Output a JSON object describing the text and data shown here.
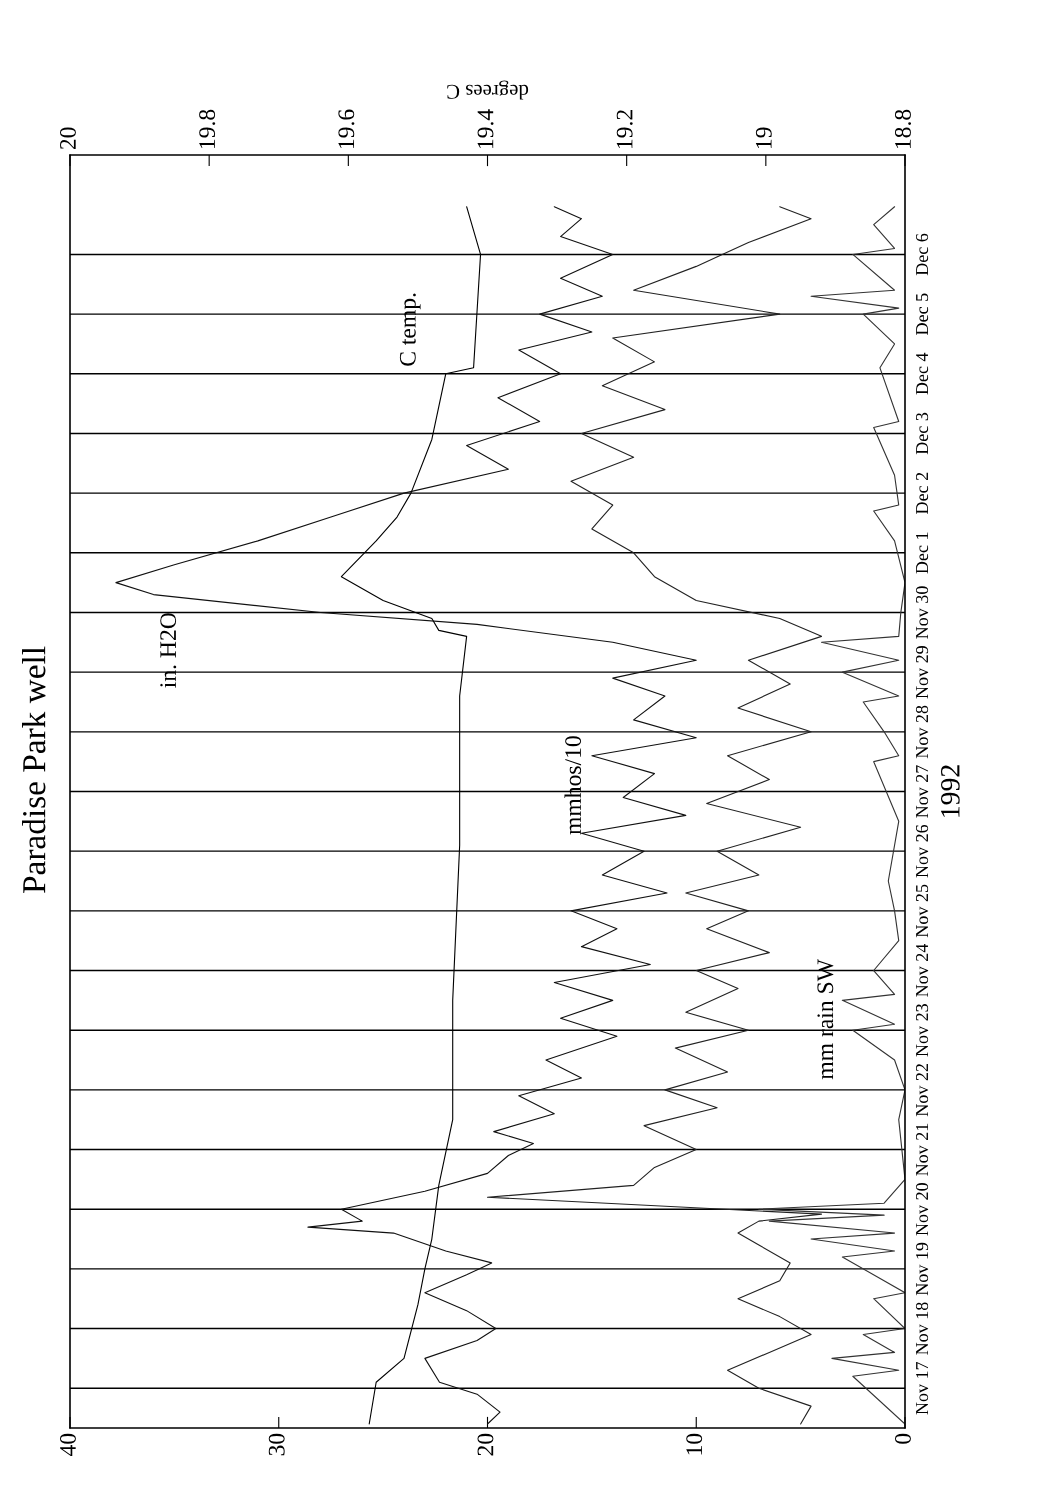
{
  "chart_data": {
    "type": "line",
    "orientation": "horizontal",
    "title": "Paradise Park well",
    "ylabel": "1992",
    "x2label": "degrees C",
    "xlim": [
      40,
      0
    ],
    "xticks": [
      40,
      30,
      20,
      10,
      0
    ],
    "x2lim": [
      20,
      18.8
    ],
    "x2ticks": [
      20,
      19.8,
      19.6,
      19.4,
      19.2,
      19,
      18.8
    ],
    "ylim": [
      "1992-11-16T08:00",
      "1992-12-07T16:00"
    ],
    "yticks": [
      {
        "value": "1992-11-17T00:00",
        "label": "Nov 17"
      },
      {
        "value": "1992-11-18T00:00",
        "label": "Nov 18"
      },
      {
        "value": "1992-11-19T00:00",
        "label": "Nov 19"
      },
      {
        "value": "1992-11-20T00:00",
        "label": "Nov 20"
      },
      {
        "value": "1992-11-21T00:00",
        "label": "Nov 21"
      },
      {
        "value": "1992-11-22T00:00",
        "label": "Nov 22"
      },
      {
        "value": "1992-11-23T00:00",
        "label": "Nov 23"
      },
      {
        "value": "1992-11-24T00:00",
        "label": "Nov 24"
      },
      {
        "value": "1992-11-25T00:00",
        "label": "Nov 25"
      },
      {
        "value": "1992-11-26T00:00",
        "label": "Nov 26"
      },
      {
        "value": "1992-11-27T00:00",
        "label": "Nov 27"
      },
      {
        "value": "1992-11-28T00:00",
        "label": "Nov 28"
      },
      {
        "value": "1992-11-29T00:00",
        "label": "Nov 29"
      },
      {
        "value": "1992-11-30T00:00",
        "label": "Nov 30"
      },
      {
        "value": "1992-12-01T00:00",
        "label": "Dec 1"
      },
      {
        "value": "1992-12-02T00:00",
        "label": "Dec 2"
      },
      {
        "value": "1992-12-03T00:00",
        "label": "Dec 3"
      },
      {
        "value": "1992-12-04T00:00",
        "label": "Dec 4"
      },
      {
        "value": "1992-12-05T00:00",
        "label": "Dec 5"
      },
      {
        "value": "1992-12-06T00:00",
        "label": "Dec 6"
      }
    ],
    "grid": "y",
    "marker": "none",
    "line_style": "solid",
    "series": [
      {
        "color": "#111111",
        "x": [
          "1992-11-16T09:36",
          "1992-11-16T14:24",
          "1992-11-16T21:36",
          "1992-11-17T02:24",
          "1992-11-17T12:00",
          "1992-11-17T19:12",
          "1992-11-18T00:00",
          "1992-11-18T07:12",
          "1992-11-18T14:24",
          "1992-11-18T21:36",
          "1992-11-19T02:24",
          "1992-11-19T07:12",
          "1992-11-19T14:24",
          "1992-11-19T16:48",
          "1992-11-19T19:12",
          "1992-11-20T00:00",
          "1992-11-20T07:12",
          "1992-11-20T14:24",
          "1992-11-20T21:36",
          "1992-11-21T02:24",
          "1992-11-21T07:12",
          "1992-11-21T14:24",
          "1992-11-21T21:36",
          "1992-11-22T04:48",
          "1992-11-22T12:00",
          "1992-11-22T21:36",
          "1992-11-23T04:48",
          "1992-11-23T12:00",
          "1992-11-23T19:12",
          "1992-11-24T02:24",
          "1992-11-24T09:36",
          "1992-11-24T16:48",
          "1992-11-25T00:00",
          "1992-11-25T07:12",
          "1992-11-25T14:24",
          "1992-11-26T00:00",
          "1992-11-26T07:12",
          "1992-11-26T14:24",
          "1992-11-26T21:36",
          "1992-11-27T07:12",
          "1992-11-27T14:24",
          "1992-11-27T21:36",
          "1992-11-28T04:48",
          "1992-11-28T14:24",
          "1992-11-28T21:36",
          "1992-11-29T04:48",
          "1992-11-29T12:00",
          "1992-11-29T19:12",
          "1992-11-30T00:00",
          "1992-11-30T07:12",
          "1992-11-30T12:00",
          "1992-11-30T19:12",
          "1992-12-01T04:48",
          "1992-12-01T14:24",
          "1992-12-02T00:00",
          "1992-12-02T09:36",
          "1992-12-02T19:12",
          "1992-12-03T04:48",
          "1992-12-03T14:24",
          "1992-12-04T00:00",
          "1992-12-04T09:36",
          "1992-12-04T16:48",
          "1992-12-05T00:00",
          "1992-12-05T07:12",
          "1992-12-05T14:24",
          "1992-12-06T00:00",
          "1992-12-06T07:12",
          "1992-12-06T14:24",
          "1992-12-06T19:12"
        ],
        "values": [
          20.0,
          19.4,
          20.5,
          22.3,
          23.0,
          20.5,
          19.6,
          21.0,
          23.0,
          21.0,
          19.8,
          22.0,
          24.5,
          28.6,
          26.0,
          27.0,
          23.0,
          20.0,
          19.0,
          17.8,
          19.7,
          16.8,
          18.5,
          15.5,
          17.2,
          13.8,
          16.5,
          14.0,
          16.8,
          12.2,
          15.5,
          13.8,
          16.0,
          11.4,
          14.5,
          12.5,
          15.5,
          10.5,
          13.5,
          12.0,
          15.0,
          10.0,
          13.0,
          11.5,
          14.0,
          10.0,
          14.0,
          20.5,
          28.0,
          36.0,
          37.8,
          35.0,
          31.0,
          27.5,
          24.0,
          19.0,
          21.0,
          17.5,
          19.5,
          16.5,
          18.5,
          15.0,
          17.5,
          14.5,
          16.5,
          14.0,
          16.5,
          15.5,
          16.8
        ]
      },
      {
        "color": "#222222",
        "x": [
          "1992-11-16T09:36",
          "1992-11-16T16:48",
          "1992-11-17T00:00",
          "1992-11-17T07:12",
          "1992-11-17T14:24",
          "1992-11-17T21:36",
          "1992-11-18T04:48",
          "1992-11-18T12:00",
          "1992-11-18T19:12",
          "1992-11-19T02:24",
          "1992-11-19T09:36",
          "1992-11-19T14:24",
          "1992-11-19T19:12",
          "1992-11-19T22:00",
          "1992-11-20T04:48",
          "1992-11-20T09:36",
          "1992-11-20T16:48",
          "1992-11-21T00:00",
          "1992-11-21T09:36",
          "1992-11-21T16:48",
          "1992-11-22T00:00",
          "1992-11-22T07:12",
          "1992-11-22T16:48",
          "1992-11-23T00:00",
          "1992-11-23T07:12",
          "1992-11-23T16:48",
          "1992-11-24T00:00",
          "1992-11-24T07:12",
          "1992-11-24T16:48",
          "1992-11-25T00:00",
          "1992-11-25T07:12",
          "1992-11-25T14:24",
          "1992-11-26T00:00",
          "1992-11-26T09:36",
          "1992-11-26T19:12",
          "1992-11-27T04:48",
          "1992-11-27T14:24",
          "1992-11-28T00:00",
          "1992-11-28T09:36",
          "1992-11-28T19:12",
          "1992-11-29T04:48",
          "1992-11-29T14:24",
          "1992-11-29T21:36",
          "1992-11-30T04:48",
          "1992-11-30T14:24",
          "1992-12-01T00:00",
          "1992-12-01T09:36",
          "1992-12-01T19:12",
          "1992-12-02T04:48",
          "1992-12-02T14:24",
          "1992-12-03T00:00",
          "1992-12-03T09:36",
          "1992-12-03T19:12",
          "1992-12-04T04:48",
          "1992-12-04T14:24",
          "1992-12-05T00:00",
          "1992-12-05T09:36",
          "1992-12-05T19:12",
          "1992-12-06T04:48",
          "1992-12-06T14:24",
          "1992-12-06T19:12"
        ],
        "values": [
          5.0,
          4.5,
          7.0,
          8.5,
          6.5,
          4.5,
          6.0,
          8.0,
          6.0,
          5.5,
          7.0,
          8.0,
          7.0,
          4.0,
          20.0,
          13.0,
          12.0,
          10.0,
          12.5,
          9.0,
          11.5,
          8.5,
          11.0,
          7.5,
          10.5,
          8.0,
          10.0,
          6.5,
          9.5,
          7.5,
          10.5,
          7.0,
          9.0,
          5.0,
          9.5,
          6.5,
          8.5,
          4.5,
          8.0,
          5.5,
          7.5,
          4.0,
          6.0,
          10.0,
          12.0,
          13.0,
          15.0,
          14.0,
          16.0,
          13.0,
          15.5,
          11.5,
          14.5,
          12.0,
          14.0,
          6.0,
          13.0,
          10.0,
          7.5,
          4.5,
          6.0
        ]
      },
      {
        "color": "#333333",
        "x": [
          "1992-11-16T09:36",
          "1992-11-17T04:48",
          "1992-11-17T07:12",
          "1992-11-17T12:00",
          "1992-11-17T14:24",
          "1992-11-17T21:36",
          "1992-11-18T00:00",
          "1992-11-18T12:00",
          "1992-11-18T14:24",
          "1992-11-19T04:48",
          "1992-11-19T07:12",
          "1992-11-19T12:00",
          "1992-11-19T14:24",
          "1992-11-19T19:12",
          "1992-11-19T21:36",
          "1992-11-20T00:00",
          "1992-11-20T02:24",
          "1992-11-20T12:00",
          "1992-11-21T12:00",
          "1992-11-22T00:00",
          "1992-11-22T12:00",
          "1992-11-23T00:00",
          "1992-11-23T02:24",
          "1992-11-23T12:00",
          "1992-11-23T14:24",
          "1992-11-24T00:00",
          "1992-11-24T12:00",
          "1992-11-25T00:00",
          "1992-11-25T12:00",
          "1992-11-26T12:00",
          "1992-11-27T12:00",
          "1992-11-27T14:24",
          "1992-11-28T00:00",
          "1992-11-28T12:00",
          "1992-11-28T14:24",
          "1992-11-29T00:00",
          "1992-11-29T04:48",
          "1992-11-29T12:00",
          "1992-11-29T14:24",
          "1992-11-30T00:00",
          "1992-11-30T12:00",
          "1992-12-01T04:48",
          "1992-12-01T16:48",
          "1992-12-01T19:12",
          "1992-12-02T07:12",
          "1992-12-03T02:24",
          "1992-12-03T04:48",
          "1992-12-04T02:24",
          "1992-12-04T12:00",
          "1992-12-05T00:00",
          "1992-12-05T02:24",
          "1992-12-05T07:12",
          "1992-12-05T09:36",
          "1992-12-06T00:00",
          "1992-12-06T02:24",
          "1992-12-06T12:00",
          "1992-12-06T19:12"
        ],
        "values": [
          0,
          2.5,
          0.3,
          3.5,
          0.5,
          2,
          0,
          1.5,
          0,
          3,
          0.5,
          4.5,
          0.5,
          6.5,
          1,
          7,
          1,
          0,
          0.3,
          0,
          0.5,
          2.5,
          0.5,
          3,
          0.5,
          1.5,
          0.3,
          0.5,
          0.8,
          0.3,
          1.5,
          0.3,
          1,
          2,
          0.3,
          3,
          0.3,
          4,
          0.3,
          0.2,
          0,
          0.5,
          1.5,
          0.3,
          0.5,
          1.5,
          0.3,
          1.2,
          0.5,
          2,
          0.3,
          4.5,
          0.5,
          2.5,
          0.5,
          1.5,
          0.5
        ]
      },
      {
        "color": "#000000",
        "axis": "x2",
        "x": [
          "1992-11-16T09:36",
          "1992-11-17T02:24",
          "1992-11-17T12:00",
          "1992-11-18T09:36",
          "1992-11-19T00:00",
          "1992-11-19T12:00",
          "1992-11-20T09:36",
          "1992-11-21T12:00",
          "1992-11-23T12:00",
          "1992-11-26T02:24",
          "1992-11-28T14:24",
          "1992-11-29T14:24",
          "1992-11-29T16:48",
          "1992-11-29T21:36",
          "1992-11-30T04:48",
          "1992-11-30T14:24",
          "1992-12-01T04:48",
          "1992-12-01T14:24",
          "1992-12-02T00:00",
          "1992-12-02T21:36",
          "1992-12-04T00:00",
          "1992-12-04T02:24",
          "1992-12-06T00:00",
          "1992-12-06T19:12"
        ],
        "values": [
          19.57,
          19.56,
          19.52,
          19.5,
          19.49,
          19.48,
          19.47,
          19.45,
          19.45,
          19.44,
          19.44,
          19.43,
          19.47,
          19.48,
          19.55,
          19.61,
          19.56,
          19.53,
          19.51,
          19.48,
          19.46,
          19.42,
          19.41,
          19.43
        ]
      }
    ],
    "annotations": [
      "in. H2O",
      "C temp.",
      "mmhos/10",
      "mm rain SW"
    ]
  }
}
